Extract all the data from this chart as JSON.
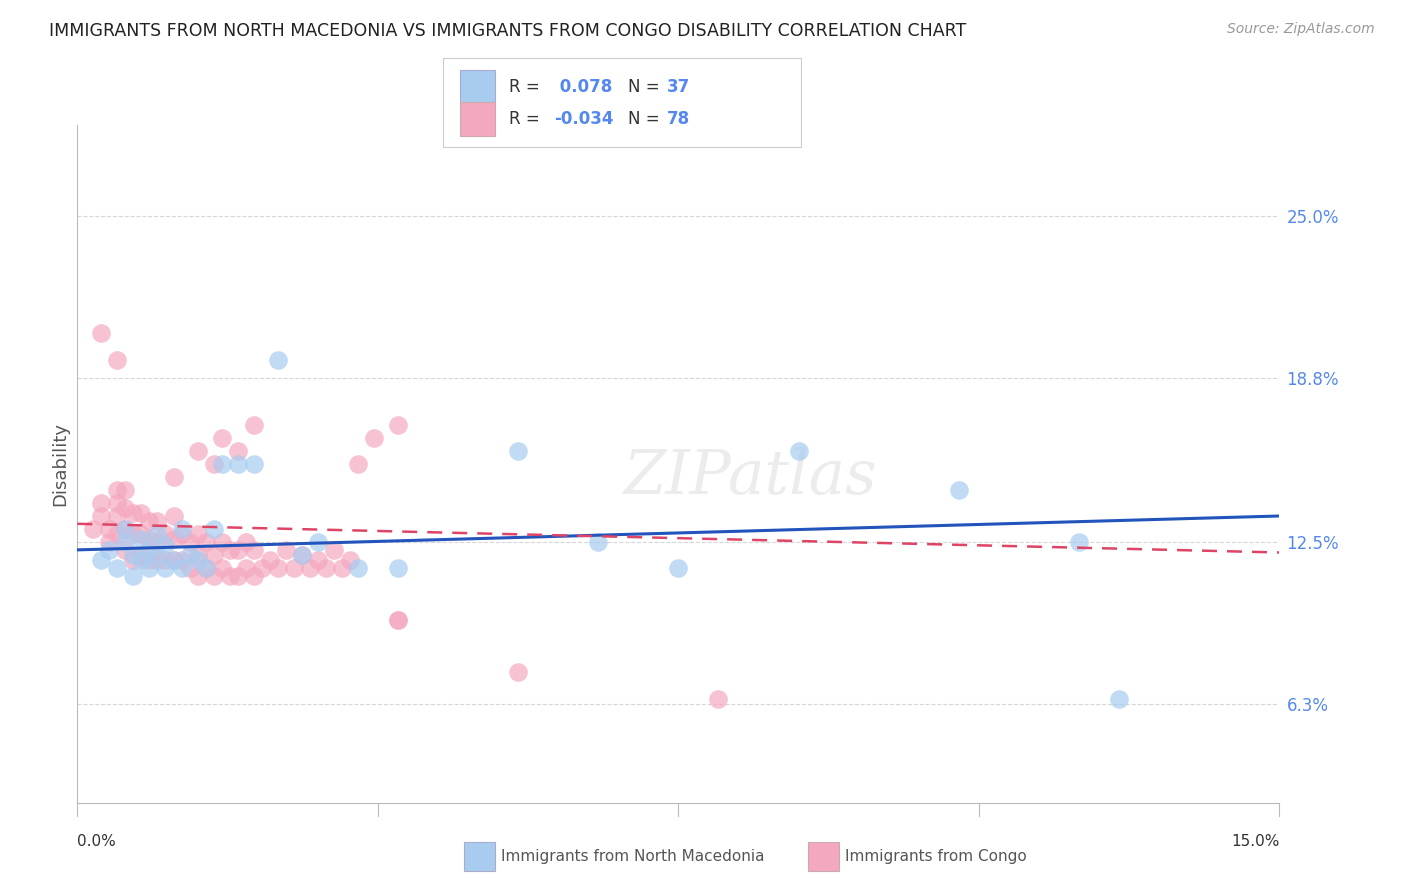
{
  "title": "IMMIGRANTS FROM NORTH MACEDONIA VS IMMIGRANTS FROM CONGO DISABILITY CORRELATION CHART",
  "source": "Source: ZipAtlas.com",
  "ylabel": "Disability",
  "xlim": [
    0.0,
    0.15
  ],
  "ylim": [
    0.025,
    0.285
  ],
  "ytick_vals": [
    0.25,
    0.188,
    0.125,
    0.063
  ],
  "ytick_labels": [
    "25.0%",
    "18.8%",
    "12.5%",
    "6.3%"
  ],
  "xtick_labels": [
    "0.0%",
    "15.0%"
  ],
  "legend_blue_R": "0.078",
  "legend_blue_N": "37",
  "legend_pink_R": "-0.034",
  "legend_pink_N": "78",
  "color_blue": "#A8CCF0",
  "color_pink": "#F4A8C0",
  "color_blue_line": "#2255BB",
  "color_pink_line": "#DD4466",
  "color_grid": "#CCCCCC",
  "color_right_labels": "#5588EE",
  "background_color": "#FFFFFF",
  "blue_x": [
    0.003,
    0.004,
    0.005,
    0.006,
    0.006,
    0.007,
    0.007,
    0.008,
    0.008,
    0.009,
    0.009,
    0.01,
    0.01,
    0.011,
    0.011,
    0.012,
    0.013,
    0.013,
    0.014,
    0.015,
    0.016,
    0.017,
    0.018,
    0.02,
    0.022,
    0.025,
    0.028,
    0.03,
    0.035,
    0.04,
    0.055,
    0.065,
    0.075,
    0.09,
    0.11,
    0.125,
    0.13
  ],
  "blue_y": [
    0.118,
    0.122,
    0.115,
    0.125,
    0.13,
    0.112,
    0.12,
    0.118,
    0.126,
    0.115,
    0.122,
    0.12,
    0.128,
    0.115,
    0.124,
    0.118,
    0.115,
    0.13,
    0.12,
    0.118,
    0.115,
    0.13,
    0.155,
    0.155,
    0.155,
    0.195,
    0.12,
    0.125,
    0.115,
    0.115,
    0.16,
    0.125,
    0.115,
    0.16,
    0.145,
    0.125,
    0.065
  ],
  "pink_x": [
    0.002,
    0.003,
    0.003,
    0.004,
    0.004,
    0.005,
    0.005,
    0.005,
    0.006,
    0.006,
    0.006,
    0.007,
    0.007,
    0.007,
    0.008,
    0.008,
    0.008,
    0.009,
    0.009,
    0.009,
    0.01,
    0.01,
    0.01,
    0.011,
    0.011,
    0.012,
    0.012,
    0.012,
    0.013,
    0.013,
    0.014,
    0.014,
    0.015,
    0.015,
    0.015,
    0.016,
    0.016,
    0.017,
    0.017,
    0.018,
    0.018,
    0.019,
    0.019,
    0.02,
    0.02,
    0.021,
    0.021,
    0.022,
    0.022,
    0.023,
    0.024,
    0.025,
    0.026,
    0.027,
    0.028,
    0.029,
    0.03,
    0.031,
    0.032,
    0.033,
    0.034,
    0.035,
    0.037,
    0.04,
    0.005,
    0.006,
    0.012,
    0.015,
    0.017,
    0.018,
    0.02,
    0.022,
    0.04,
    0.055,
    0.003,
    0.005,
    0.04,
    0.08
  ],
  "pink_y": [
    0.13,
    0.135,
    0.14,
    0.125,
    0.13,
    0.128,
    0.135,
    0.14,
    0.122,
    0.13,
    0.138,
    0.118,
    0.128,
    0.136,
    0.12,
    0.128,
    0.136,
    0.118,
    0.126,
    0.133,
    0.118,
    0.125,
    0.133,
    0.118,
    0.128,
    0.118,
    0.126,
    0.135,
    0.118,
    0.128,
    0.115,
    0.125,
    0.112,
    0.12,
    0.128,
    0.115,
    0.125,
    0.112,
    0.12,
    0.115,
    0.125,
    0.112,
    0.122,
    0.112,
    0.122,
    0.115,
    0.125,
    0.112,
    0.122,
    0.115,
    0.118,
    0.115,
    0.122,
    0.115,
    0.12,
    0.115,
    0.118,
    0.115,
    0.122,
    0.115,
    0.118,
    0.155,
    0.165,
    0.17,
    0.145,
    0.145,
    0.15,
    0.16,
    0.155,
    0.165,
    0.16,
    0.17,
    0.095,
    0.075,
    0.205,
    0.195,
    0.095,
    0.065
  ]
}
